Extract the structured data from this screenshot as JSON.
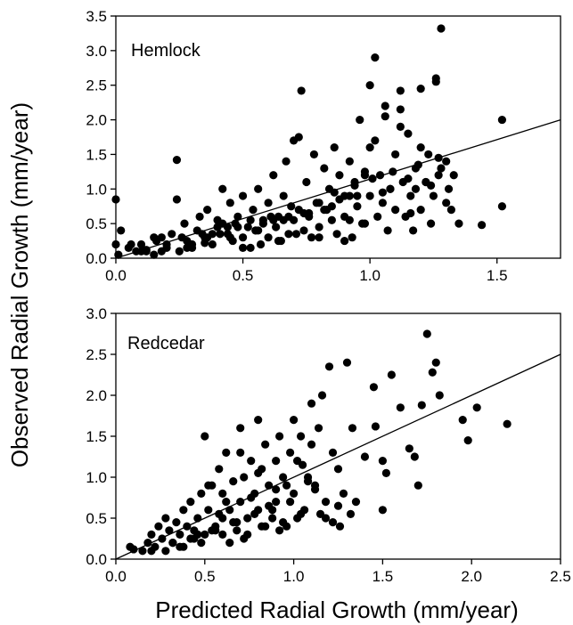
{
  "figure": {
    "xlabel": "Predicted Radial Growth (mm/year)",
    "ylabel": "Observed Radial Growth (mm/year)"
  },
  "chart_data": [
    {
      "type": "scatter",
      "title": "Hemlock",
      "xlabel": "Predicted Radial Growth (mm/year)",
      "ylabel": "Observed Radial Growth (mm/year)",
      "xlim": [
        0,
        1.75
      ],
      "ylim": [
        0,
        3.5
      ],
      "xticks": [
        "0.0",
        "0.5",
        "1.0",
        "1.5"
      ],
      "yticks": [
        "0.0",
        "0.5",
        "1.0",
        "1.5",
        "2.0",
        "2.5",
        "3.0",
        "3.5"
      ],
      "grid": false,
      "regression_line": {
        "x": [
          0,
          1.75
        ],
        "y": [
          0,
          2.0
        ]
      },
      "points": {
        "x": [
          0.0,
          0.02,
          0.0,
          0.01,
          0.05,
          0.08,
          0.1,
          0.12,
          0.15,
          0.18,
          0.2,
          0.22,
          0.24,
          0.25,
          0.27,
          0.28,
          0.3,
          0.32,
          0.33,
          0.35,
          0.36,
          0.38,
          0.4,
          0.41,
          0.42,
          0.44,
          0.45,
          0.46,
          0.48,
          0.5,
          0.5,
          0.52,
          0.53,
          0.54,
          0.55,
          0.56,
          0.57,
          0.58,
          0.6,
          0.6,
          0.62,
          0.63,
          0.64,
          0.65,
          0.66,
          0.67,
          0.68,
          0.7,
          0.7,
          0.72,
          0.73,
          0.74,
          0.75,
          0.76,
          0.77,
          0.78,
          0.8,
          0.8,
          0.82,
          0.83,
          0.84,
          0.85,
          0.86,
          0.87,
          0.88,
          0.9,
          0.9,
          0.92,
          0.93,
          0.94,
          0.95,
          0.96,
          0.97,
          0.98,
          1.0,
          1.0,
          1.02,
          1.03,
          1.04,
          1.05,
          1.06,
          1.07,
          1.08,
          1.1,
          1.1,
          1.12,
          1.13,
          1.14,
          1.15,
          1.16,
          1.17,
          1.18,
          1.2,
          1.2,
          1.22,
          1.23,
          1.24,
          1.25,
          1.26,
          1.27,
          1.28,
          1.3,
          1.3,
          1.32,
          1.33,
          0.24,
          0.18,
          0.45,
          0.72,
          0.98,
          1.02,
          1.28,
          1.52,
          1.52,
          1.44,
          1.35,
          1.26,
          1.18,
          1.12,
          0.35,
          0.42,
          0.55,
          0.62,
          0.68,
          0.76,
          0.85,
          0.92,
          1.05,
          1.15,
          0.15,
          0.28,
          0.38,
          0.48,
          0.58,
          0.66,
          0.74,
          0.82,
          0.88,
          0.95,
          1.08,
          1.22,
          1.0,
          1.06,
          1.12,
          1.2,
          0.8,
          0.5,
          0.3,
          0.9,
          1.24,
          0.1,
          0.2,
          0.06,
          0.12,
          0.16,
          0.26,
          0.34,
          0.4,
          0.47,
          0.53,
          0.61,
          0.69,
          0.79,
          0.86,
          0.94,
          1.01,
          1.09,
          1.19,
          1.27,
          1.31,
          0.64,
          0.71,
          0.56,
          0.44,
          0.36,
          0.92,
          1.16,
          0.98
        ],
        "y": [
          0.85,
          0.4,
          0.2,
          0.05,
          0.15,
          0.1,
          0.2,
          0.12,
          0.05,
          0.3,
          0.2,
          0.35,
          1.42,
          0.1,
          0.5,
          0.25,
          0.15,
          0.4,
          0.6,
          0.3,
          0.7,
          0.2,
          0.55,
          0.35,
          1.0,
          0.45,
          0.8,
          0.25,
          0.6,
          0.3,
          0.9,
          0.45,
          0.15,
          0.7,
          0.4,
          1.0,
          0.2,
          0.55,
          0.3,
          0.8,
          1.2,
          0.45,
          0.6,
          0.25,
          0.9,
          1.4,
          0.35,
          0.55,
          1.7,
          0.7,
          2.42,
          0.4,
          1.1,
          0.6,
          0.3,
          1.5,
          0.8,
          0.45,
          1.3,
          0.7,
          1.0,
          0.55,
          1.6,
          0.35,
          1.2,
          0.9,
          0.6,
          1.4,
          0.3,
          1.1,
          0.75,
          2.0,
          0.5,
          1.25,
          0.9,
          1.6,
          2.9,
          0.6,
          1.2,
          0.8,
          2.2,
          0.4,
          1.0,
          1.5,
          0.7,
          2.42,
          1.1,
          0.6,
          1.8,
          0.9,
          0.4,
          1.3,
          2.45,
          0.7,
          1.1,
          1.5,
          0.5,
          0.9,
          2.6,
          1.2,
          3.32,
          0.8,
          1.4,
          0.7,
          1.2,
          0.85,
          0.1,
          0.3,
          1.75,
          1.2,
          1.7,
          1.3,
          2.0,
          0.75,
          0.48,
          0.5,
          2.55,
          1.0,
          2.15,
          0.22,
          0.5,
          0.4,
          0.55,
          0.6,
          0.65,
          0.75,
          0.9,
          0.95,
          1.15,
          0.3,
          0.15,
          0.35,
          0.45,
          0.5,
          0.55,
          0.65,
          0.7,
          0.85,
          0.9,
          1.0,
          1.1,
          2.5,
          2.05,
          1.9,
          1.6,
          0.3,
          0.15,
          0.2,
          0.25,
          1.05,
          0.1,
          0.15,
          0.2,
          0.1,
          0.25,
          0.3,
          0.35,
          0.45,
          0.5,
          0.55,
          0.6,
          0.75,
          0.8,
          0.95,
          1.05,
          1.15,
          1.25,
          1.35,
          1.45,
          1.0,
          0.25,
          0.35,
          0.4,
          0.35,
          0.3,
          0.55,
          0.65,
          0.5
        ]
      }
    },
    {
      "type": "scatter",
      "title": "Redcedar",
      "xlabel": "Predicted Radial Growth (mm/year)",
      "ylabel": "Observed Radial Growth (mm/year)",
      "xlim": [
        0,
        2.5
      ],
      "ylim": [
        0,
        3.0
      ],
      "xticks": [
        "0.0",
        "0.5",
        "1.0",
        "1.5",
        "2.0",
        "2.5"
      ],
      "yticks": [
        "0.0",
        "0.5",
        "1.0",
        "1.5",
        "2.0",
        "2.5",
        "3.0"
      ],
      "grid": false,
      "regression_line": {
        "x": [
          0,
          2.5
        ],
        "y": [
          0,
          2.5
        ]
      },
      "points": {
        "x": [
          0.08,
          0.1,
          0.15,
          0.18,
          0.2,
          0.22,
          0.24,
          0.26,
          0.28,
          0.3,
          0.32,
          0.34,
          0.36,
          0.38,
          0.4,
          0.42,
          0.44,
          0.46,
          0.48,
          0.5,
          0.5,
          0.52,
          0.54,
          0.56,
          0.58,
          0.6,
          0.6,
          0.62,
          0.64,
          0.66,
          0.68,
          0.7,
          0.7,
          0.72,
          0.74,
          0.76,
          0.78,
          0.8,
          0.8,
          0.82,
          0.84,
          0.86,
          0.88,
          0.9,
          0.9,
          0.92,
          0.94,
          0.96,
          0.98,
          1.0,
          1.0,
          1.02,
          1.04,
          1.06,
          1.08,
          1.1,
          1.1,
          1.12,
          1.14,
          1.16,
          1.18,
          1.2,
          1.22,
          1.25,
          1.28,
          1.3,
          1.33,
          1.35,
          1.4,
          1.45,
          1.5,
          1.55,
          1.6,
          1.65,
          1.7,
          1.75,
          1.8,
          1.82,
          1.95,
          1.98,
          2.03,
          2.2,
          1.78,
          1.72,
          1.5,
          1.46,
          1.52,
          1.68,
          0.52,
          0.62,
          0.7,
          0.8,
          0.9,
          1.05,
          1.15,
          1.25,
          0.46,
          0.58,
          0.66,
          0.76,
          0.86,
          0.96,
          1.08,
          1.18,
          0.32,
          0.42,
          0.56,
          0.68,
          0.78,
          0.88,
          0.98,
          1.12,
          1.22,
          0.28,
          0.38,
          0.48,
          0.6,
          0.72,
          0.84,
          0.94,
          1.04,
          1.32,
          0.2,
          0.36,
          0.44,
          0.54,
          0.64,
          0.74,
          0.82,
          0.92,
          1.02,
          1.26
        ],
        "y": [
          0.15,
          0.12,
          0.1,
          0.2,
          0.3,
          0.15,
          0.4,
          0.25,
          0.5,
          0.35,
          0.2,
          0.45,
          0.3,
          0.6,
          0.4,
          0.7,
          0.35,
          0.5,
          0.8,
          0.3,
          1.5,
          0.6,
          0.9,
          0.4,
          1.1,
          0.5,
          0.8,
          1.3,
          0.6,
          0.95,
          0.35,
          1.6,
          0.7,
          1.0,
          0.5,
          1.2,
          0.8,
          1.7,
          0.6,
          1.1,
          1.4,
          0.9,
          0.5,
          1.2,
          0.7,
          1.5,
          1.0,
          0.4,
          1.3,
          1.7,
          0.8,
          1.2,
          1.5,
          0.6,
          1.0,
          1.4,
          1.9,
          0.9,
          1.6,
          2.0,
          0.7,
          2.35,
          1.3,
          1.1,
          0.8,
          2.4,
          1.6,
          0.7,
          1.25,
          2.1,
          1.2,
          2.25,
          1.85,
          1.35,
          0.9,
          2.75,
          2.4,
          2.0,
          1.7,
          1.45,
          1.85,
          1.65,
          2.28,
          1.88,
          0.6,
          1.62,
          1.05,
          1.25,
          0.9,
          0.7,
          1.3,
          1.05,
          0.85,
          1.15,
          0.55,
          0.65,
          0.3,
          0.55,
          0.45,
          0.75,
          0.65,
          0.9,
          0.95,
          0.5,
          0.2,
          0.25,
          0.35,
          0.45,
          0.55,
          0.6,
          0.7,
          0.85,
          0.45,
          0.1,
          0.15,
          0.2,
          0.3,
          0.25,
          0.4,
          0.45,
          0.55,
          0.55,
          0.1,
          0.15,
          0.25,
          0.35,
          0.2,
          0.3,
          0.4,
          0.35,
          0.5,
          0.4
        ]
      }
    }
  ]
}
